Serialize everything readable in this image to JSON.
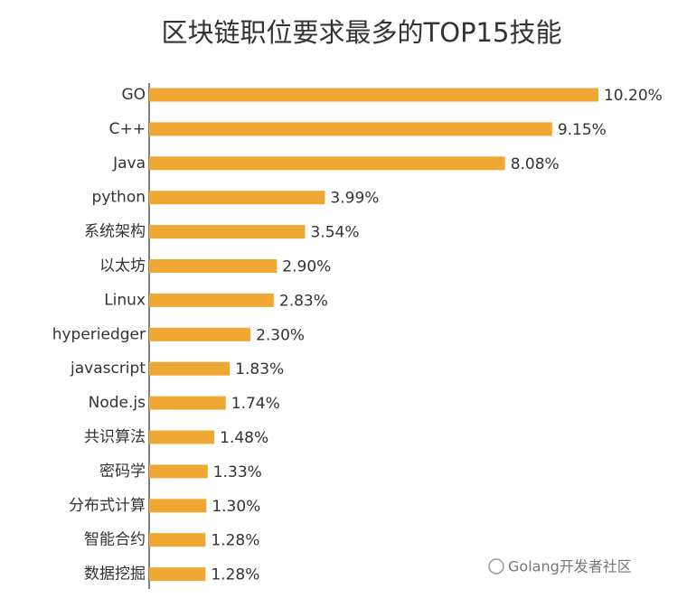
{
  "chart_data": {
    "type": "bar",
    "orientation": "horizontal",
    "title": "区块链职位要求最多的TOP15技能",
    "categories": [
      "GO",
      "C++",
      "Java",
      "python",
      "系统架构",
      "以太坊",
      "Linux",
      "hyperiedger",
      "javascript",
      "Node.js",
      "共识算法",
      "密码学",
      "分布式计算",
      "智能合约",
      "数据挖掘"
    ],
    "values": [
      10.2,
      9.15,
      8.08,
      3.99,
      3.54,
      2.9,
      2.83,
      2.3,
      1.83,
      1.74,
      1.48,
      1.33,
      1.3,
      1.28,
      1.28
    ],
    "value_labels": [
      "10.20%",
      "9.15%",
      "8.08%",
      "3.99%",
      "3.54%",
      "2.90%",
      "2.83%",
      "2.30%",
      "1.83%",
      "1.74%",
      "1.48%",
      "1.33%",
      "1.30%",
      "1.28%",
      "1.28%"
    ],
    "color": "#eea833",
    "xlim": [
      0,
      10.5
    ],
    "watermark": "Golang开发者社区"
  }
}
